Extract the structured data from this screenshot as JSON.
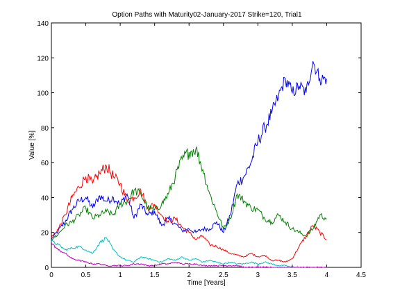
{
  "chart_data": {
    "type": "line",
    "title": "Option Paths with Maturity02-January-2017 Strike=120, Trial1",
    "xlabel": "Time [Years]",
    "ylabel": "Value [%]",
    "xlim": [
      0,
      4.5
    ],
    "ylim": [
      0,
      140
    ],
    "xticks": [
      0,
      0.5,
      1,
      1.5,
      2,
      2.5,
      3,
      3.5,
      4,
      4.5
    ],
    "yticks": [
      0,
      20,
      40,
      60,
      80,
      100,
      120,
      140
    ],
    "grid": false,
    "series": [
      {
        "color": "#0000ff",
        "x": [
          0,
          0.1,
          0.2,
          0.3,
          0.4,
          0.5,
          0.6,
          0.7,
          0.8,
          0.9,
          1.0,
          1.1,
          1.2,
          1.3,
          1.4,
          1.5,
          1.6,
          1.7,
          1.8,
          1.9,
          2.0,
          2.1,
          2.2,
          2.3,
          2.4,
          2.5,
          2.6,
          2.7,
          2.8,
          2.9,
          3.0,
          3.1,
          3.2,
          3.3,
          3.4,
          3.5,
          3.6,
          3.7,
          3.8,
          3.9,
          4.0
        ],
        "y": [
          16,
          21,
          26,
          33,
          38,
          40,
          34,
          41,
          38,
          40,
          36,
          42,
          28,
          36,
          30,
          32,
          24,
          28,
          25,
          21,
          22,
          20,
          22,
          22,
          26,
          20,
          30,
          48,
          52,
          60,
          72,
          80,
          88,
          98,
          108,
          100,
          104,
          100,
          118,
          108,
          108
        ]
      },
      {
        "color": "#ff0000",
        "x": [
          0,
          0.1,
          0.2,
          0.3,
          0.4,
          0.5,
          0.6,
          0.7,
          0.8,
          0.9,
          1.0,
          1.1,
          1.2,
          1.3,
          1.4,
          1.5,
          1.6,
          1.7,
          1.8,
          1.9,
          2.0,
          2.1,
          2.2,
          2.3,
          2.4,
          2.5,
          2.6,
          2.7,
          2.8,
          2.9,
          3.0,
          3.1,
          3.2,
          3.3,
          3.4,
          3.5,
          3.6,
          3.7,
          3.8,
          3.9,
          4.0
        ],
        "y": [
          17,
          22,
          30,
          40,
          46,
          52,
          48,
          54,
          58,
          52,
          48,
          38,
          40,
          44,
          34,
          36,
          30,
          26,
          28,
          23,
          20,
          16,
          18,
          13,
          12,
          10,
          8,
          7,
          6,
          8,
          6,
          7,
          4,
          4,
          3,
          5,
          12,
          18,
          24,
          20,
          16
        ]
      },
      {
        "color": "#008000",
        "x": [
          0,
          0.1,
          0.2,
          0.3,
          0.4,
          0.5,
          0.6,
          0.7,
          0.8,
          0.9,
          1.0,
          1.1,
          1.2,
          1.3,
          1.4,
          1.5,
          1.6,
          1.7,
          1.8,
          1.9,
          2.0,
          2.1,
          2.2,
          2.3,
          2.4,
          2.5,
          2.6,
          2.7,
          2.8,
          2.9,
          3.0,
          3.1,
          3.2,
          3.3,
          3.4,
          3.5,
          3.6,
          3.7,
          3.8,
          3.9,
          4.0
        ],
        "y": [
          16,
          19,
          24,
          26,
          30,
          34,
          28,
          30,
          32,
          30,
          36,
          38,
          44,
          42,
          34,
          33,
          36,
          42,
          52,
          62,
          66,
          68,
          56,
          42,
          32,
          22,
          28,
          42,
          38,
          34,
          33,
          28,
          26,
          30,
          26,
          22,
          20,
          18,
          22,
          30,
          28
        ]
      },
      {
        "color": "#00bfbf",
        "x": [
          0,
          0.1,
          0.2,
          0.3,
          0.4,
          0.5,
          0.6,
          0.7,
          0.8,
          0.9,
          1.0,
          1.1,
          1.2,
          1.3,
          1.4,
          1.5,
          1.6,
          1.7,
          1.8,
          1.9,
          2.0,
          2.1,
          2.2,
          2.3,
          2.4,
          2.5,
          2.6,
          2.7,
          2.8,
          2.9,
          3.0,
          3.1,
          3.2,
          3.3,
          3.4,
          3.5,
          3.6
        ],
        "y": [
          15,
          13,
          10,
          11,
          12,
          10,
          8,
          14,
          17,
          10,
          6,
          4,
          3,
          6,
          5,
          4,
          3,
          5,
          4,
          6,
          4,
          5,
          3,
          4,
          3,
          2,
          3,
          2,
          2,
          3,
          2,
          3,
          2,
          1,
          1,
          0,
          0
        ]
      },
      {
        "color": "#bf00bf",
        "x": [
          0,
          0.1,
          0.2,
          0.3,
          0.4,
          0.5,
          0.6,
          0.7,
          0.8,
          0.9,
          1.0,
          1.1,
          1.2,
          1.3,
          1.4,
          1.5,
          1.6,
          1.7,
          1.8,
          1.9,
          2.0,
          2.1,
          2.2,
          2.3,
          2.4,
          2.5,
          2.6,
          2.7,
          2.8,
          2.9,
          3.0,
          3.1,
          3.2,
          3.3,
          3.4,
          3.5,
          3.6,
          3.7,
          3.8,
          3.9,
          4.0
        ],
        "y": [
          14,
          10,
          8,
          5,
          4,
          3,
          2,
          2,
          1,
          1,
          1,
          1,
          2,
          2,
          1,
          1,
          2,
          2,
          3,
          2,
          2,
          2,
          1,
          1,
          1,
          1,
          1,
          1,
          0,
          0,
          0,
          0,
          0,
          0,
          0,
          0,
          0,
          0,
          0,
          0,
          0
        ]
      }
    ]
  }
}
